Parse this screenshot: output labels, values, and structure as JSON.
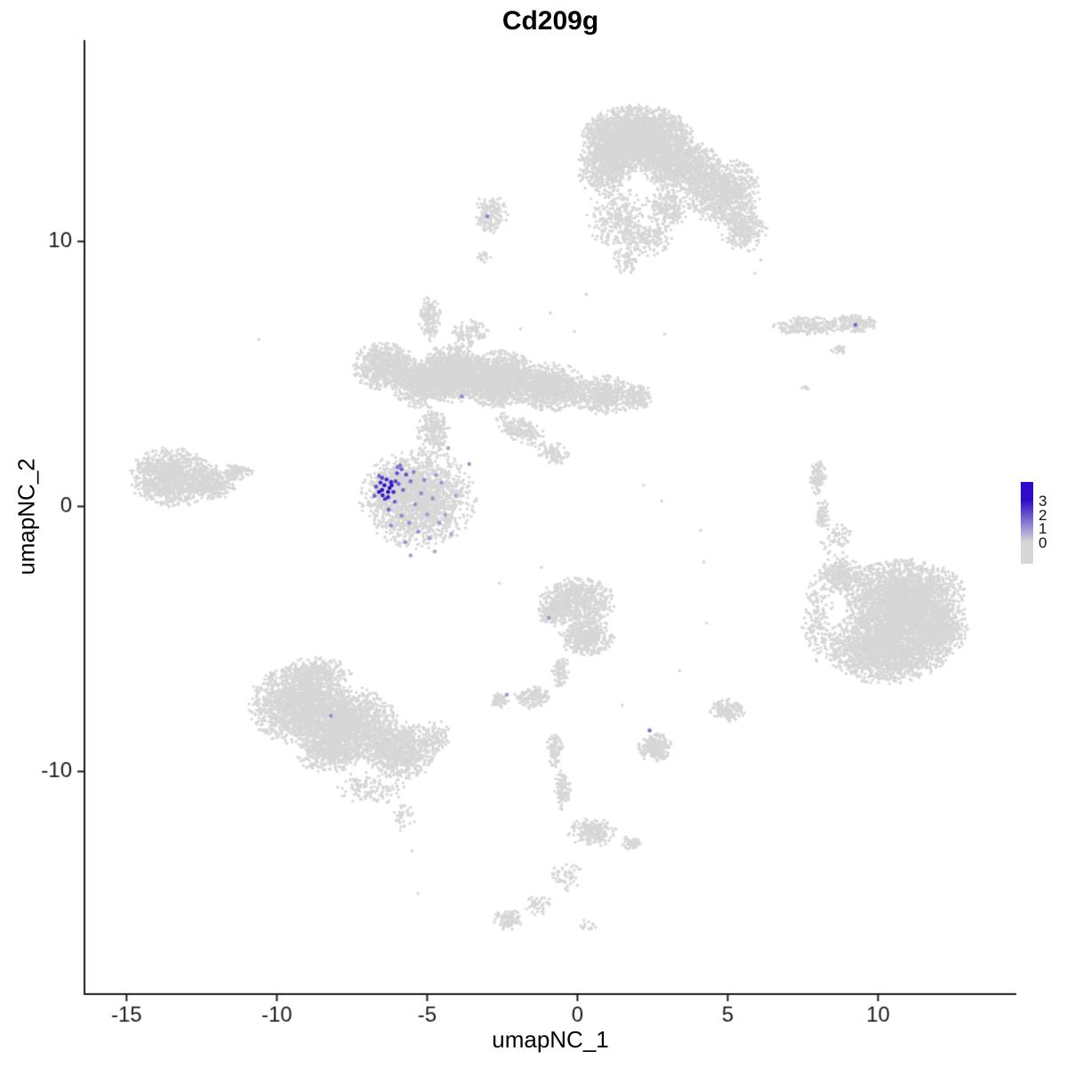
{
  "chart_data": {
    "type": "scatter",
    "title": "Cd209g",
    "xlabel": "umapNC_1",
    "ylabel": "umapNC_2",
    "xlim": [
      -16.4,
      14.6
    ],
    "ylim": [
      -18.4,
      17.6
    ],
    "xticks": [
      -15,
      -10,
      -5,
      0,
      5,
      10
    ],
    "yticks": [
      -10,
      0,
      10
    ],
    "grid": false,
    "legend_position": "right",
    "colors": {
      "zero": "#d7d7d7",
      "max": "#2e0ac9"
    },
    "colorbar": {
      "ticks": [
        0,
        1,
        2,
        3
      ],
      "max_value": 3
    },
    "blob_fields": [
      "cx",
      "cy",
      "rx",
      "ry",
      "n",
      "rot_deg"
    ],
    "clusters": [
      {
        "name": "top-center-large",
        "blobs": [
          [
            2.0,
            13.9,
            1.7,
            1.15,
            2600
          ],
          [
            3.4,
            12.9,
            1.2,
            0.9,
            900
          ],
          [
            4.8,
            11.9,
            1.2,
            1.2,
            900
          ],
          [
            5.5,
            10.5,
            0.75,
            0.85,
            300
          ],
          [
            0.9,
            12.8,
            0.85,
            1.0,
            500
          ],
          [
            1.3,
            10.9,
            0.95,
            1.1,
            260
          ],
          [
            2.3,
            10.2,
            0.8,
            0.7,
            180
          ],
          [
            3.0,
            11.3,
            0.7,
            0.7,
            220
          ],
          [
            1.6,
            9.3,
            0.5,
            0.5,
            60
          ]
        ]
      },
      {
        "name": "top-small",
        "blobs": [
          [
            -2.9,
            11.0,
            0.55,
            0.7,
            160
          ],
          [
            -3.1,
            9.4,
            0.2,
            0.3,
            18
          ]
        ]
      },
      {
        "name": "middle-left-complex",
        "blobs": [
          [
            -6.4,
            5.3,
            1.0,
            0.85,
            650
          ],
          [
            -5.3,
            4.6,
            0.8,
            0.8,
            600
          ],
          [
            -4.2,
            5.0,
            1.1,
            1.0,
            1300
          ],
          [
            -2.6,
            4.8,
            1.2,
            1.0,
            1400
          ],
          [
            -0.9,
            4.5,
            1.1,
            0.85,
            900
          ],
          [
            0.9,
            4.2,
            1.0,
            0.7,
            450
          ],
          [
            2.0,
            4.1,
            0.5,
            0.45,
            120
          ],
          [
            -4.9,
            7.1,
            0.35,
            0.8,
            150
          ],
          [
            -3.6,
            6.5,
            0.6,
            0.5,
            100
          ],
          [
            -4.8,
            2.9,
            0.5,
            0.8,
            220
          ],
          [
            -1.9,
            2.9,
            0.9,
            0.45,
            200,
            -30
          ],
          [
            -0.8,
            2.0,
            0.5,
            0.4,
            80,
            -30
          ]
        ]
      },
      {
        "name": "expression-host-blob",
        "blobs": [
          [
            -5.3,
            0.3,
            1.8,
            1.75,
            1700
          ],
          [
            -6.1,
            0.7,
            0.7,
            0.7,
            300
          ]
        ]
      },
      {
        "name": "far-left",
        "blobs": [
          [
            -13.5,
            1.1,
            1.3,
            1.05,
            1000
          ],
          [
            -12.2,
            0.9,
            0.8,
            0.6,
            350
          ],
          [
            -11.3,
            1.3,
            0.5,
            0.3,
            90
          ]
        ]
      },
      {
        "name": "right-thin-horizontal",
        "blobs": [
          [
            7.6,
            6.8,
            1.0,
            0.35,
            220
          ],
          [
            9.2,
            6.9,
            0.75,
            0.3,
            160
          ],
          [
            8.7,
            5.9,
            0.25,
            0.2,
            25
          ],
          [
            7.6,
            4.5,
            0.15,
            0.15,
            8
          ]
        ]
      },
      {
        "name": "right-sliver",
        "blobs": [
          [
            8.0,
            1.1,
            0.25,
            0.65,
            110
          ],
          [
            8.15,
            -0.3,
            0.22,
            0.5,
            70
          ]
        ]
      },
      {
        "name": "right-large",
        "blobs": [
          [
            10.9,
            -3.5,
            1.9,
            1.4,
            2400
          ],
          [
            10.3,
            -5.3,
            1.9,
            1.3,
            2200
          ],
          [
            12.0,
            -4.6,
            0.9,
            1.0,
            600
          ],
          [
            8.8,
            -2.6,
            0.7,
            0.7,
            300
          ],
          [
            8.0,
            -4.2,
            0.5,
            1.6,
            160
          ],
          [
            8.6,
            -1.2,
            0.5,
            0.6,
            60
          ]
        ]
      },
      {
        "name": "center-bottom",
        "blobs": [
          [
            0.0,
            -3.6,
            1.15,
            0.85,
            700
          ],
          [
            0.3,
            -4.9,
            0.85,
            0.7,
            400
          ],
          [
            -0.8,
            -4.0,
            0.5,
            0.5,
            150
          ],
          [
            -0.55,
            -6.2,
            0.3,
            0.6,
            80
          ],
          [
            -1.5,
            -7.2,
            0.55,
            0.4,
            130
          ],
          [
            -2.6,
            -7.3,
            0.3,
            0.28,
            60
          ]
        ]
      },
      {
        "name": "bottom-left-large",
        "blobs": [
          [
            -9.3,
            -7.5,
            1.5,
            1.4,
            1700
          ],
          [
            -7.6,
            -8.2,
            1.5,
            1.3,
            1500
          ],
          [
            -5.9,
            -9.2,
            1.2,
            1.0,
            800
          ],
          [
            -8.6,
            -6.3,
            1.0,
            0.6,
            300
          ],
          [
            -8.3,
            -9.3,
            1.0,
            0.7,
            400
          ],
          [
            -6.9,
            -10.6,
            1.1,
            0.6,
            130
          ],
          [
            -5.8,
            -11.7,
            0.4,
            0.5,
            35
          ],
          [
            -4.7,
            -8.7,
            0.5,
            0.6,
            90
          ]
        ]
      },
      {
        "name": "bottom-center-tails",
        "blobs": [
          [
            -0.75,
            -9.2,
            0.25,
            0.65,
            90
          ],
          [
            -0.5,
            -10.7,
            0.25,
            0.7,
            90
          ],
          [
            0.5,
            -12.3,
            0.75,
            0.5,
            220
          ],
          [
            1.8,
            -12.7,
            0.3,
            0.25,
            55
          ],
          [
            -0.4,
            -13.9,
            0.5,
            0.6,
            50
          ],
          [
            -1.3,
            -15.0,
            0.4,
            0.4,
            40
          ],
          [
            -2.3,
            -15.6,
            0.45,
            0.35,
            110
          ],
          [
            0.3,
            -15.8,
            0.3,
            0.2,
            14
          ]
        ]
      },
      {
        "name": "small-bottom-right-pair",
        "blobs": [
          [
            2.6,
            -9.1,
            0.55,
            0.5,
            230
          ],
          [
            5.0,
            -7.7,
            0.55,
            0.4,
            130
          ]
        ]
      }
    ],
    "singles": [
      [
        -10.6,
        6.3
      ],
      [
        0.3,
        8.0
      ],
      [
        2.2,
        0.8
      ],
      [
        2.8,
        0.2
      ],
      [
        4.1,
        -0.9
      ],
      [
        4.2,
        -2.1
      ],
      [
        4.3,
        -4.4
      ],
      [
        -1.9,
        6.7
      ],
      [
        -0.9,
        7.3
      ],
      [
        -0.1,
        6.6
      ],
      [
        -1.2,
        -2.3
      ],
      [
        -2.6,
        -2.9
      ],
      [
        6.1,
        9.3
      ],
      [
        5.9,
        8.8
      ],
      [
        3.4,
        -6.2
      ],
      [
        1.5,
        -7.5
      ],
      [
        -5.5,
        -13.0
      ],
      [
        -5.3,
        -14.6
      ],
      [
        2.9,
        6.5
      ]
    ],
    "expression_points": [
      [
        -6.5,
        0.62,
        3
      ],
      [
        -6.42,
        0.8,
        3
      ],
      [
        -6.3,
        0.55,
        3
      ],
      [
        -6.48,
        0.42,
        2.8
      ],
      [
        -6.2,
        0.92,
        2.7
      ],
      [
        -6.35,
        1.02,
        2.5
      ],
      [
        -6.55,
        0.9,
        2.6
      ],
      [
        -6.25,
        0.7,
        3
      ],
      [
        -6.12,
        0.55,
        2.6
      ],
      [
        -6.4,
        0.28,
        2.4
      ],
      [
        -6.6,
        0.55,
        2.9
      ],
      [
        -6.3,
        0.35,
        2.7
      ],
      [
        -6.18,
        0.8,
        2.9
      ],
      [
        -6.5,
        1.08,
        2.2
      ],
      [
        -6.05,
        0.95,
        2.3
      ],
      [
        -6.0,
        1.25,
        2
      ],
      [
        -5.85,
        1.4,
        1.8
      ],
      [
        -5.7,
        1.2,
        2
      ],
      [
        -5.95,
        0.85,
        1.8
      ],
      [
        -5.8,
        0.62,
        1.6
      ],
      [
        -6.08,
        0.18,
        1.8
      ],
      [
        -6.28,
        -0.12,
        1.6
      ],
      [
        -5.55,
        0.95,
        1.5
      ],
      [
        -5.9,
        1.55,
        1.4
      ],
      [
        -6.6,
        1.15,
        1.7
      ],
      [
        -5.98,
        1.48,
        1.5
      ],
      [
        -5.45,
        1.3,
        1.3
      ],
      [
        -6.7,
        0.75,
        2.1
      ],
      [
        -6.75,
        0.4,
        1.6
      ],
      [
        -5.85,
        -0.35,
        1.2
      ],
      [
        -5.6,
        -0.62,
        1.1
      ],
      [
        -5.3,
        -0.95,
        1.0
      ],
      [
        -5.0,
        -0.3,
        0.9
      ],
      [
        -4.82,
        0.3,
        1.0
      ],
      [
        -4.6,
        -0.62,
        0.9
      ],
      [
        -5.2,
        0.5,
        1.2
      ],
      [
        -5.4,
        0.08,
        1.1
      ],
      [
        -4.92,
        -1.2,
        0.9
      ],
      [
        -5.72,
        -1.35,
        1.0
      ],
      [
        -6.2,
        -0.72,
        1.1
      ],
      [
        -4.52,
        0.9,
        1.0
      ],
      [
        -4.4,
        -0.32,
        0.8
      ],
      [
        -5.1,
        1.0,
        1.2
      ],
      [
        -4.7,
        1.18,
        0.9
      ],
      [
        -4.05,
        0.4,
        0.8
      ],
      [
        -4.2,
        -1.05,
        0.7
      ],
      [
        -5.55,
        -1.85,
        0.8
      ],
      [
        -4.75,
        -1.7,
        0.7
      ],
      [
        -3.0,
        10.95,
        1.3
      ],
      [
        9.25,
        6.85,
        1.6
      ],
      [
        -3.85,
        4.15,
        1.1
      ],
      [
        -0.95,
        -4.2,
        1.0
      ],
      [
        -2.35,
        -7.1,
        1.0
      ],
      [
        2.4,
        -8.45,
        1.6
      ],
      [
        -8.2,
        -7.9,
        1.1
      ],
      [
        -3.6,
        1.6,
        0.9
      ],
      [
        -4.3,
        2.2,
        0.8
      ]
    ]
  }
}
